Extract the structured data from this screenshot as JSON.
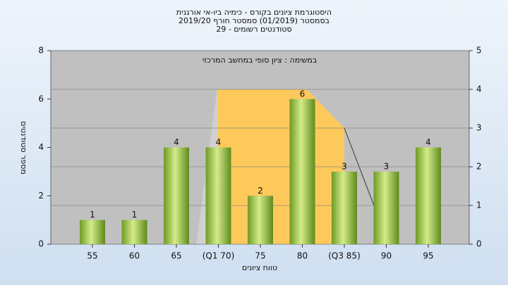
{
  "chart_data": {
    "type": "bar",
    "title": [
      "היסטוגרמת ציונים בקורס - כימיה ביו-אי אורגנית",
      "בסמסטר  (01/2019)  סמסטר חורף 2019/20",
      "סטודנטים רשומים - 29"
    ],
    "subtitle": "במשימה : ציון סופי במחשב המרכזי",
    "x_label": "טווח ציונים",
    "y_label": "מספר סטודנטים",
    "categories": [
      "55",
      "60",
      "65",
      "(Q1 70)",
      "75",
      "80",
      "(Q3 85)",
      "90",
      "95"
    ],
    "values": [
      1,
      1,
      4,
      4,
      2,
      6,
      3,
      3,
      4
    ],
    "color": "#8fbf3a",
    "ylim": [
      0,
      8
    ],
    "yticks": [
      0,
      2,
      4,
      6,
      8
    ],
    "y2lim": [
      0,
      5
    ],
    "y2ticks": [
      0,
      1,
      2,
      3,
      4,
      5
    ]
  }
}
